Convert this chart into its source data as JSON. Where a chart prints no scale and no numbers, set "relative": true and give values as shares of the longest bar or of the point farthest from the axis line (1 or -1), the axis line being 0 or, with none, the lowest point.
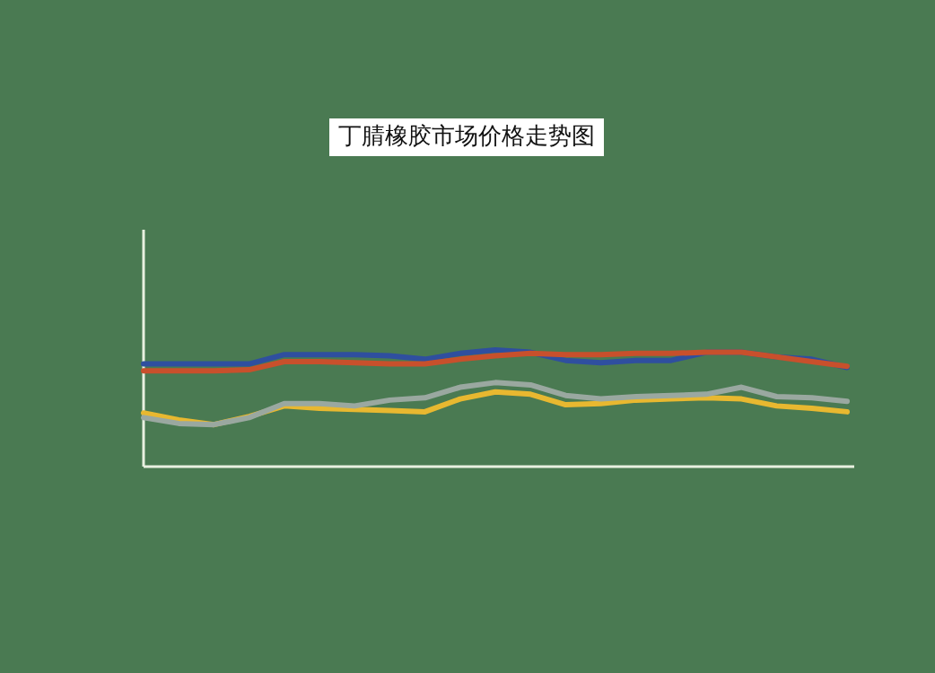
{
  "chart_data": {
    "type": "line",
    "title": "丁腈橡胶市场价格走势图",
    "relative": true,
    "categories": [
      null,
      null,
      null,
      null,
      null,
      null,
      null,
      null,
      null,
      null,
      null,
      null,
      null,
      null,
      null,
      null,
      null,
      null,
      null,
      null,
      null
    ],
    "series": [
      {
        "color": "#2f4f9f",
        "values": [
          0.88,
          0.88,
          0.88,
          0.88,
          0.96,
          0.96,
          0.96,
          0.95,
          0.92,
          0.97,
          1.0,
          0.98,
          0.91,
          0.89,
          0.91,
          0.91,
          0.98,
          0.98,
          0.94,
          0.92,
          0.85
        ]
      },
      {
        "color": "#e8b830",
        "values": [
          0.46,
          0.4,
          0.36,
          0.43,
          0.52,
          0.5,
          0.49,
          0.48,
          0.47,
          0.58,
          0.64,
          0.62,
          0.53,
          0.54,
          0.57,
          0.58,
          0.59,
          0.58,
          0.52,
          0.5,
          0.47
        ]
      },
      {
        "color": "#9aa8a0",
        "values": [
          0.42,
          0.37,
          0.36,
          0.42,
          0.54,
          0.54,
          0.52,
          0.57,
          0.59,
          0.68,
          0.72,
          0.7,
          0.61,
          0.58,
          0.6,
          0.61,
          0.62,
          0.68,
          0.6,
          0.59,
          0.56
        ]
      },
      {
        "color": "#c8502c",
        "values": [
          0.82,
          0.82,
          0.82,
          0.83,
          0.9,
          0.9,
          0.89,
          0.88,
          0.88,
          0.92,
          0.95,
          0.97,
          0.96,
          0.96,
          0.97,
          0.97,
          0.98,
          0.98,
          0.94,
          0.9,
          0.86
        ]
      }
    ]
  }
}
